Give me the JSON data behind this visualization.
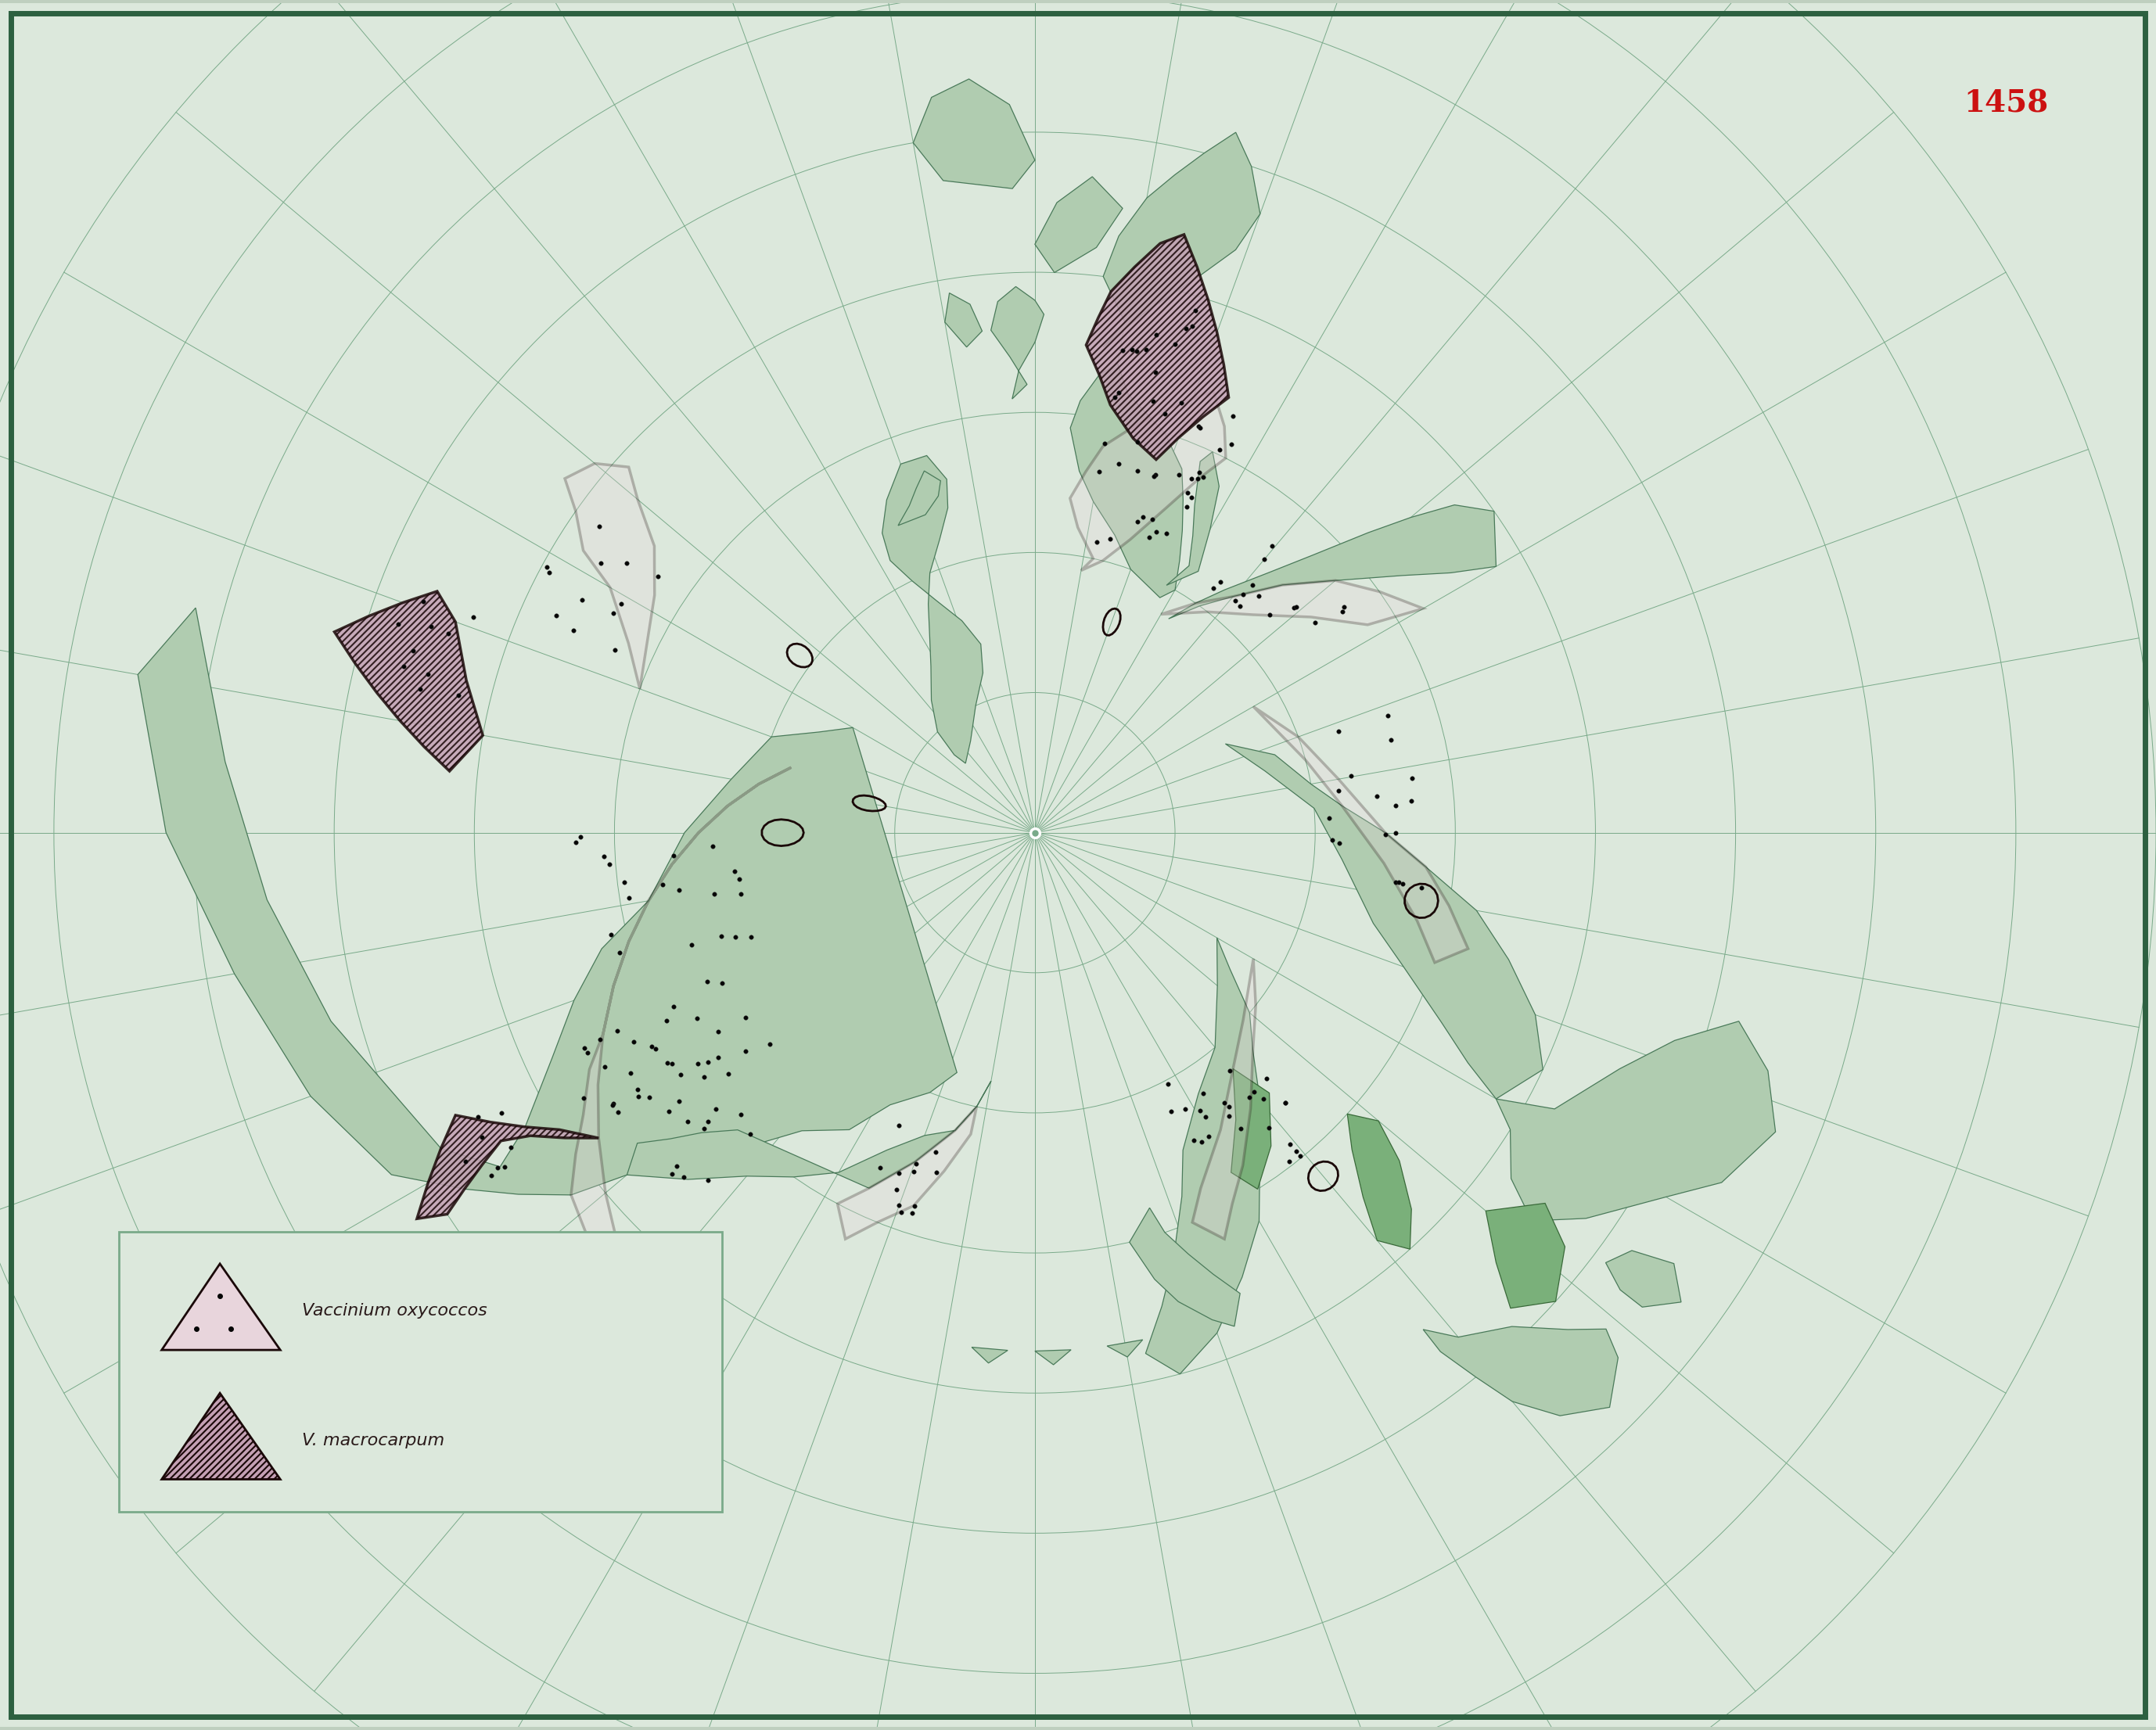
{
  "figure_number": "1458",
  "fig_width": 27.56,
  "fig_height": 22.12,
  "outer_bg": "#bfcfbf",
  "inner_bg": "#dce8dc",
  "border_color": "#2d6040",
  "grid_color": "#7aaa8a",
  "land_color": "#b0ccb0",
  "land_edge": "#4a7a5a",
  "dark_land_color": "#7aaa7a",
  "oxyc_fill": "#e8d5dc",
  "oxyc_edge": "#1a0808",
  "mac_fill": "#c4a0b4",
  "mac_edge": "#1a0808",
  "dot_color": "#050505",
  "title_color": "#cc1111",
  "legend_label1": "Vaccinium oxycoccos",
  "legend_label2": "V. macrocarpum",
  "legend_bg": "#dce8dc",
  "legend_edge": "#7aaa8a"
}
